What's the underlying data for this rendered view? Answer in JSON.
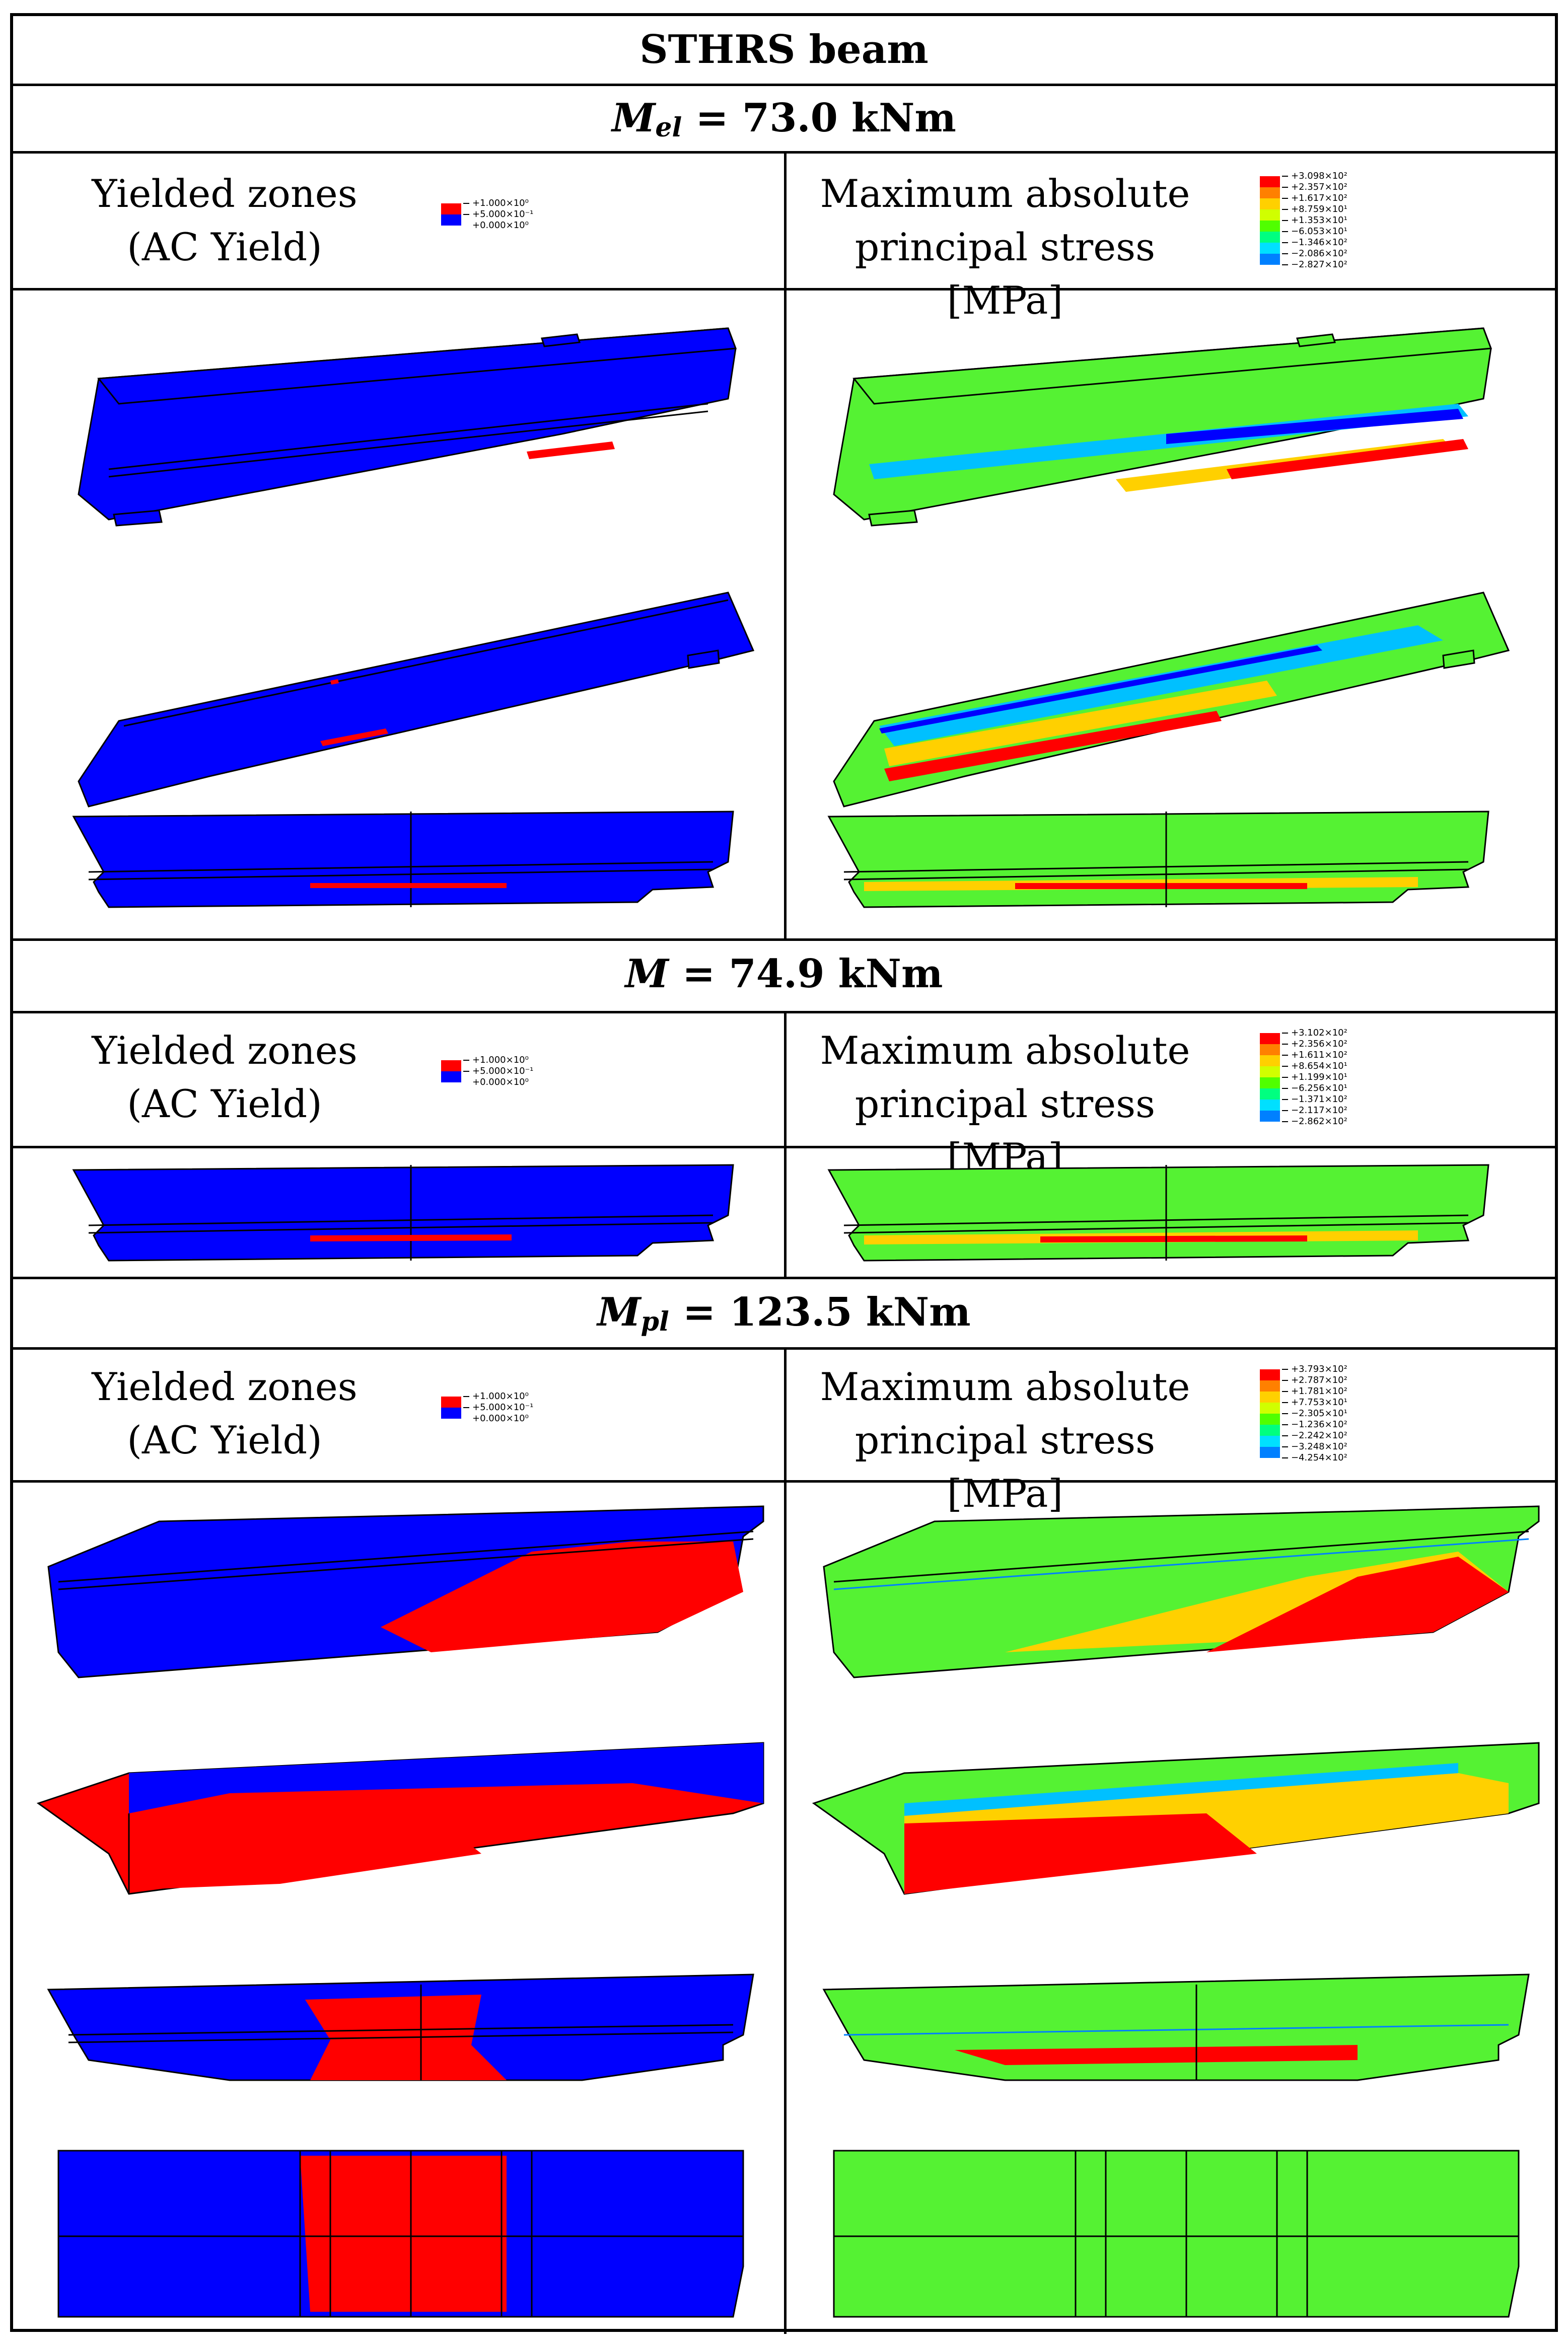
{
  "table": {
    "title": "STHRS beam",
    "sections": [
      {
        "symbol": "M",
        "subscript": "el",
        "value": "= 73.0 kNm"
      },
      {
        "symbol": "M",
        "subscript": "",
        "value": "= 74.9 kNm"
      },
      {
        "symbol": "M",
        "subscript": "pl",
        "value": "= 123.5 kNm"
      }
    ],
    "left_header": {
      "line1": "Yielded zones",
      "line2": "(AC Yield)"
    },
    "right_header": {
      "line1": "Maximum absolute",
      "line2": "principal stress [MPa]"
    },
    "yield_legend": {
      "labels": [
        "+1.000×10⁰",
        "+5.000×10⁻¹",
        "+0.000×10⁰"
      ],
      "colors": [
        "#ff0000",
        "#0000ff"
      ]
    },
    "stress_legends": [
      [
        "+3.098×10²",
        "+2.357×10²",
        "+1.617×10²",
        "+8.759×10¹",
        "+1.353×10¹",
        "−6.053×10¹",
        "−1.346×10²",
        "−2.086×10²",
        "−2.827×10²"
      ],
      [
        "+3.102×10²",
        "+2.356×10²",
        "+1.611×10²",
        "+8.654×10¹",
        "+1.199×10¹",
        "−6.256×10¹",
        "−1.371×10²",
        "−2.117×10²",
        "−2.862×10²"
      ],
      [
        "+3.793×10²",
        "+2.787×10²",
        "+1.781×10²",
        "+7.753×10¹",
        "−2.305×10¹",
        "−1.236×10²",
        "−2.242×10²",
        "−3.248×10²",
        "−4.254×10²"
      ]
    ],
    "stress_colors": [
      "#ff0000",
      "#ff8000",
      "#ffd000",
      "#d0ff00",
      "#50ff00",
      "#00ff80",
      "#00e0ff",
      "#0080ff",
      "#0000ff"
    ],
    "model_colors": {
      "yield_base": "#0000ff",
      "yield_hot": "#ff0000",
      "stress_base": "#55f233",
      "stress_hot": "#ff0000",
      "stress_mid": "#ffd000",
      "stress_cool": "#00c0ff"
    }
  }
}
